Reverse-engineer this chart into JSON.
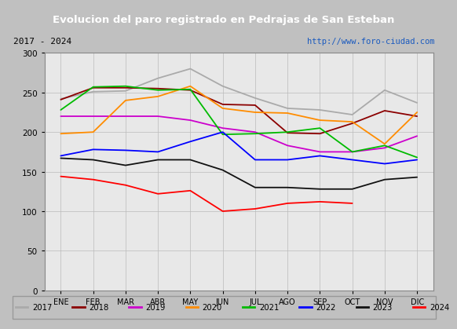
{
  "title": "Evolucion del paro registrado en Pedrajas de San Esteban",
  "subtitle_left": "2017 - 2024",
  "subtitle_right": "http://www.foro-ciudad.com",
  "title_bg": "#2060b0",
  "title_color": "white",
  "subtitle_bg": "#d8d8d8",
  "plot_bg": "#e8e8e8",
  "months": [
    "ENE",
    "FEB",
    "MAR",
    "ABR",
    "MAY",
    "JUN",
    "JUL",
    "AGO",
    "SEP",
    "OCT",
    "NOV",
    "DIC"
  ],
  "ylim": [
    0,
    300
  ],
  "yticks": [
    0,
    50,
    100,
    150,
    200,
    250,
    300
  ],
  "series": {
    "2017": {
      "color": "#aaaaaa",
      "data": [
        242,
        251,
        252,
        268,
        280,
        258,
        243,
        230,
        228,
        222,
        253,
        237
      ]
    },
    "2018": {
      "color": "#8b0000",
      "data": [
        241,
        256,
        256,
        255,
        253,
        235,
        234,
        199,
        198,
        211,
        227,
        220
      ]
    },
    "2019": {
      "color": "#cc00cc",
      "data": [
        220,
        220,
        220,
        220,
        215,
        205,
        200,
        183,
        175,
        175,
        180,
        195
      ]
    },
    "2020": {
      "color": "#ff8c00",
      "data": [
        198,
        200,
        240,
        245,
        258,
        230,
        225,
        224,
        215,
        213,
        185,
        225
      ]
    },
    "2021": {
      "color": "#00bb00",
      "data": [
        228,
        257,
        258,
        253,
        254,
        197,
        198,
        200,
        205,
        175,
        183,
        168
      ]
    },
    "2022": {
      "color": "#0000ff",
      "data": [
        170,
        178,
        177,
        175,
        188,
        200,
        165,
        165,
        170,
        165,
        160,
        165
      ]
    },
    "2023": {
      "color": "#111111",
      "data": [
        167,
        165,
        158,
        165,
        165,
        152,
        130,
        130,
        128,
        128,
        140,
        143
      ]
    },
    "2024": {
      "color": "#ff0000",
      "data": [
        144,
        140,
        133,
        122,
        126,
        100,
        103,
        110,
        112,
        110,
        null,
        null
      ]
    }
  },
  "legend_order": [
    "2017",
    "2018",
    "2019",
    "2020",
    "2021",
    "2022",
    "2023",
    "2024"
  ],
  "grid_color": "#bbbbbb",
  "axis_border_color": "#888888"
}
